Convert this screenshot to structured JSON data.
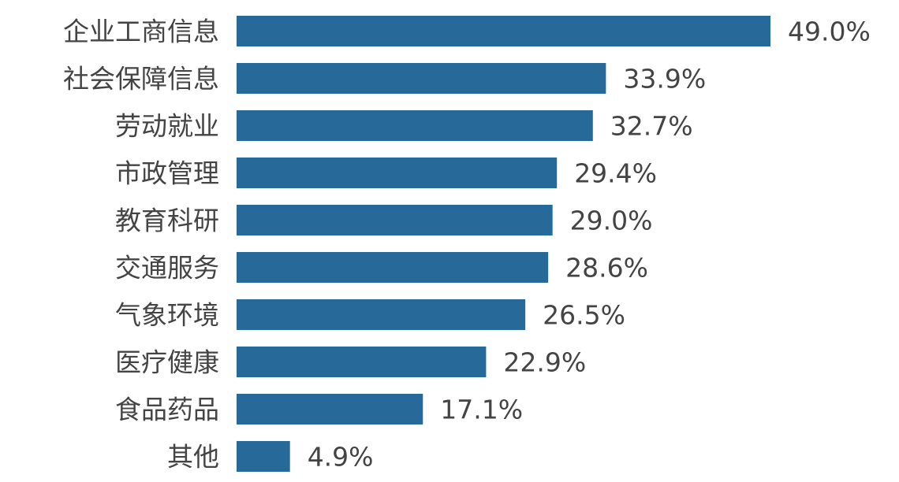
{
  "chart_data": {
    "type": "bar",
    "orientation": "horizontal",
    "title": "",
    "xlabel": "",
    "ylabel": "",
    "xlim": [
      0,
      49.0
    ],
    "grid": false,
    "bar_color": "#276a9a",
    "value_suffix": "%",
    "categories": [
      "企业工商信息",
      "社会保障信息",
      "劳动就业",
      "市政管理",
      "教育科研",
      "交通服务",
      "气象环境",
      "医疗健康",
      "食品药品",
      "其他"
    ],
    "values": [
      49.0,
      33.9,
      32.7,
      29.4,
      29.0,
      28.6,
      26.5,
      22.9,
      17.1,
      4.9
    ],
    "labels": [
      "49.0%",
      "33.9%",
      "32.7%",
      "29.4%",
      "29.0%",
      "28.6%",
      "26.5%",
      "22.9%",
      "17.1%",
      "4.9%"
    ]
  }
}
